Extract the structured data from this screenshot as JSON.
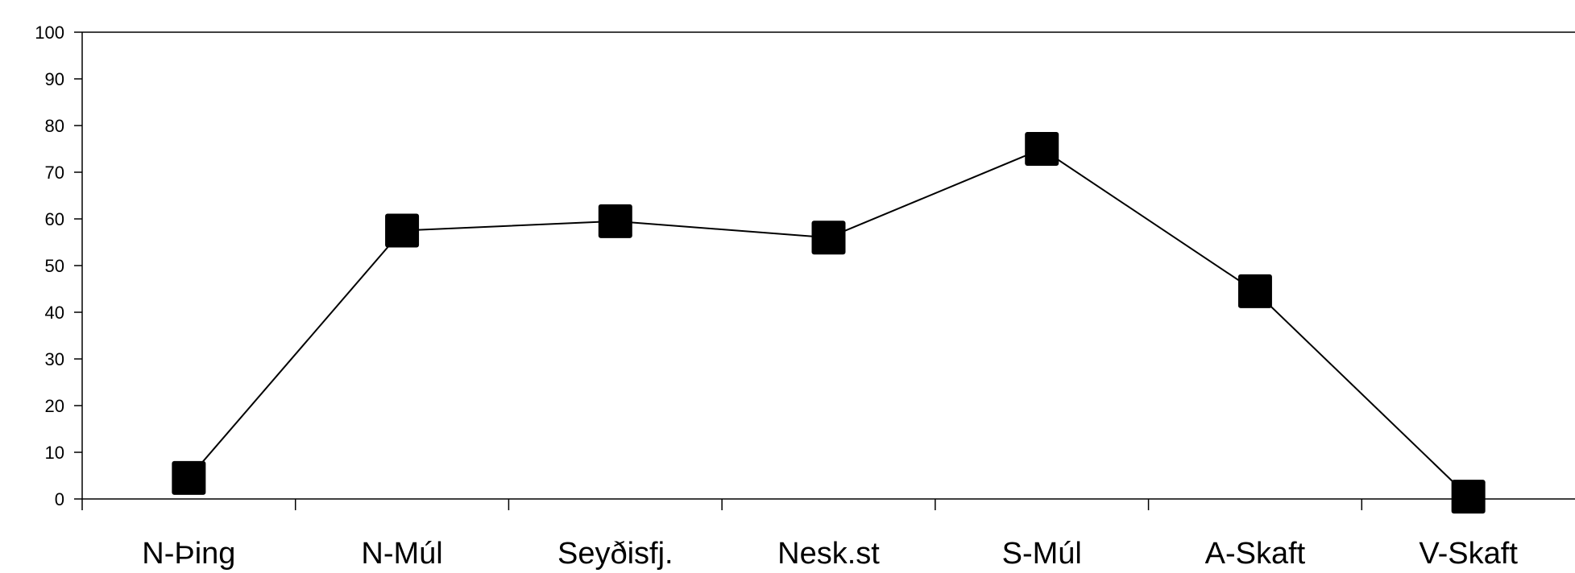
{
  "chart_data": {
    "type": "line",
    "categories": [
      "N-Þing",
      "N-Múl",
      "Seyðisfj.",
      "Nesk.st",
      "S-Múl",
      "A-Skaft",
      "V-Skaft"
    ],
    "series": [
      {
        "values": [
          4.5,
          57.5,
          59.5,
          56,
          75,
          44.5,
          0.5
        ]
      }
    ],
    "ylim": [
      0,
      100
    ],
    "yticks": [
      0,
      10,
      20,
      30,
      40,
      50,
      60,
      70,
      80,
      90,
      100
    ],
    "grid": false,
    "marker": "square",
    "colors": {
      "line": "#000000",
      "marker": "#000000",
      "axis": "#000000"
    }
  }
}
